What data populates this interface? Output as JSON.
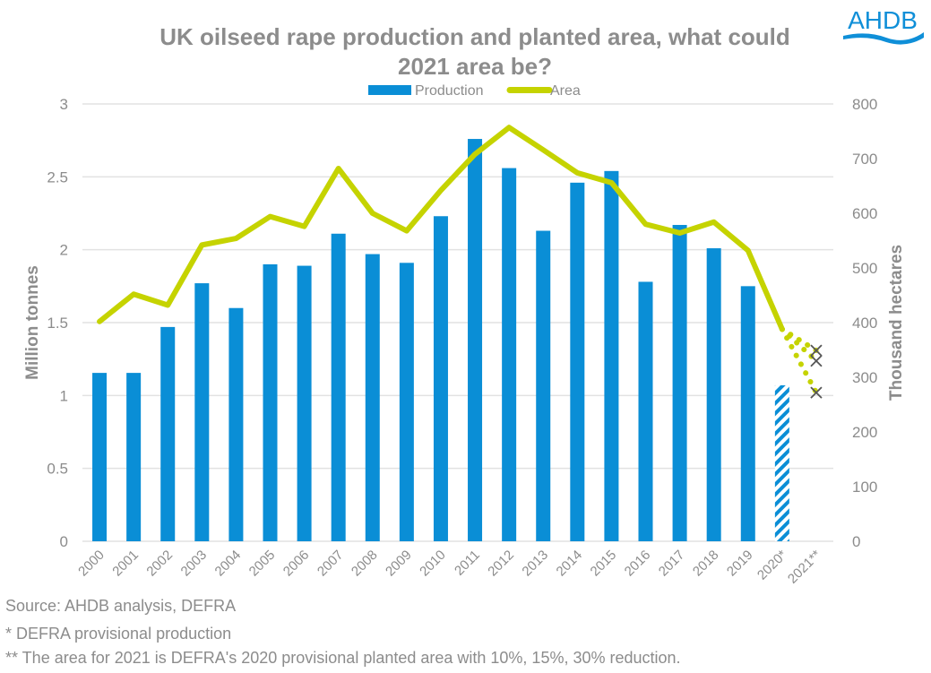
{
  "logo": {
    "text": "AHDB",
    "color": "#0f8fd8"
  },
  "footnotes": {
    "source": "Source: AHDB analysis, DEFRA",
    "note1": "* DEFRA provisional production",
    "note2": "** The area for 2021 is DEFRA's 2020 provisional planted area with 10%, 15%, 30% reduction."
  },
  "chart_data": {
    "type": "bar",
    "title": "UK oilseed rape production and planted area, what could 2021 area be?",
    "title_lines": [
      "UK oilseed rape production and planted area, what could",
      "2021 area be?"
    ],
    "xlabel": "",
    "ylabel": "Million tonnes",
    "y2label": "Thousand hectares",
    "ylim": [
      0,
      3
    ],
    "y2lim": [
      0,
      800
    ],
    "yticks": [
      0,
      0.5,
      1,
      1.5,
      2,
      2.5,
      3
    ],
    "ytick_labels": [
      "0",
      "0.5",
      "1",
      "1.5",
      "2",
      "2.5",
      "3"
    ],
    "y2ticks": [
      0,
      100,
      200,
      300,
      400,
      500,
      600,
      700,
      800
    ],
    "y2tick_labels": [
      "0",
      "100",
      "200",
      "300",
      "400",
      "500",
      "600",
      "700",
      "800"
    ],
    "grid": true,
    "legend_position": "top-center",
    "categories": [
      "2000",
      "2001",
      "2002",
      "2003",
      "2004",
      "2005",
      "2006",
      "2007",
      "2008",
      "2009",
      "2010",
      "2011",
      "2012",
      "2013",
      "2014",
      "2015",
      "2016",
      "2017",
      "2018",
      "2019",
      "2020*",
      "2021**"
    ],
    "series": [
      {
        "name": "Production",
        "type": "bar",
        "axis": "left",
        "color": "#0a8ed6",
        "values": [
          1.155,
          1.155,
          1.47,
          1.77,
          1.6,
          1.9,
          1.89,
          2.11,
          1.97,
          1.91,
          2.23,
          2.76,
          2.56,
          2.13,
          2.46,
          2.54,
          1.78,
          2.17,
          2.01,
          1.75,
          1.07,
          null
        ],
        "hatched": [
          "2020*"
        ]
      },
      {
        "name": "Area",
        "type": "line",
        "axis": "right",
        "color": "#c5d300",
        "values": [
          402,
          452,
          432,
          542,
          554,
          594,
          576,
          682,
          600,
          568,
          642,
          708,
          757,
          716,
          674,
          656,
          580,
          564,
          584,
          532,
          388,
          null
        ]
      }
    ],
    "projections_2021": {
      "name": "2021 area scenarios",
      "axis": "right",
      "marker": "x",
      "marker_color": "#555555",
      "from_category": "2020*",
      "to_category": "2021**",
      "reductions": [
        "10%",
        "15%",
        "30%"
      ],
      "values": [
        349,
        330,
        272
      ]
    }
  }
}
